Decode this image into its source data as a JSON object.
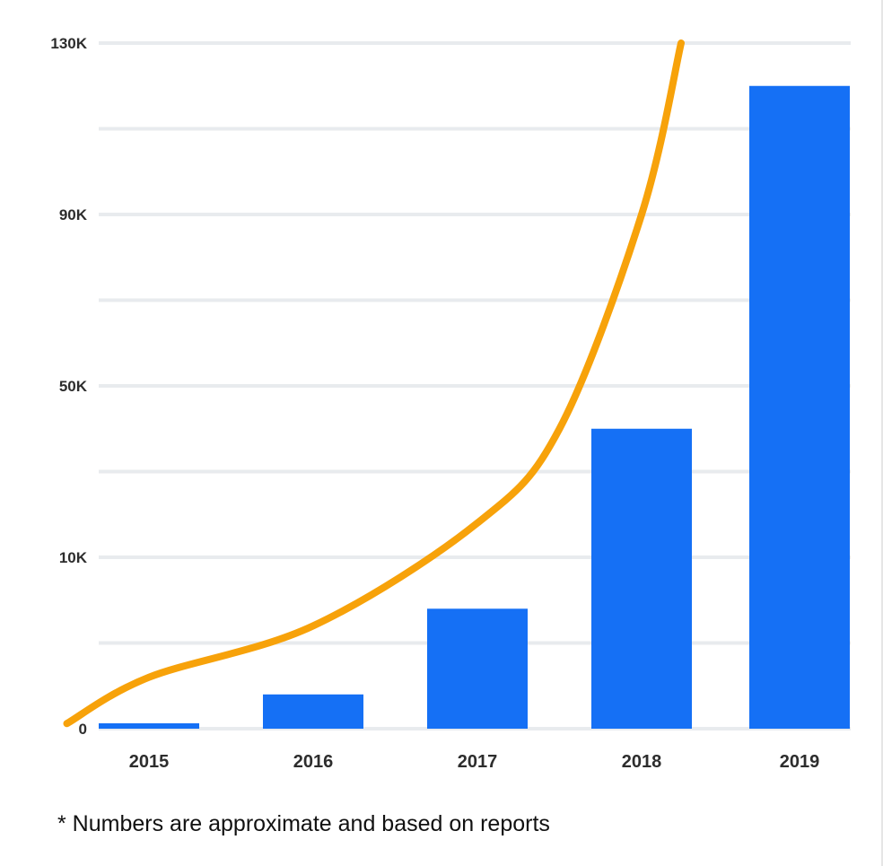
{
  "chart_data": {
    "type": "bar",
    "categories": [
      "2015",
      "2016",
      "2017",
      "2018",
      "2019"
    ],
    "values": [
      300,
      2000,
      7000,
      40000,
      120000
    ],
    "y_ticks": [
      {
        "label": "0",
        "value": 0
      },
      {
        "label": "10K",
        "value": 10000
      },
      {
        "label": "50K",
        "value": 50000
      },
      {
        "label": "90K",
        "value": 90000
      },
      {
        "label": "130K",
        "value": 130000
      }
    ],
    "y_scale": "nonlinear",
    "grid": true,
    "bar_color": "#1570f5",
    "trend_line": {
      "color": "#f7a20a",
      "points": [
        {
          "x": 2014.5,
          "y": 300
        },
        {
          "x": 2015,
          "y": 3000
        },
        {
          "x": 2016,
          "y": 6000
        },
        {
          "x": 2017,
          "y": 18000
        },
        {
          "x": 2017.5,
          "y": 40000
        },
        {
          "x": 2018,
          "y": 90000
        },
        {
          "x": 2018.25,
          "y": 130000
        }
      ]
    }
  },
  "footnote": "* Numbers are approximate and based on reports"
}
